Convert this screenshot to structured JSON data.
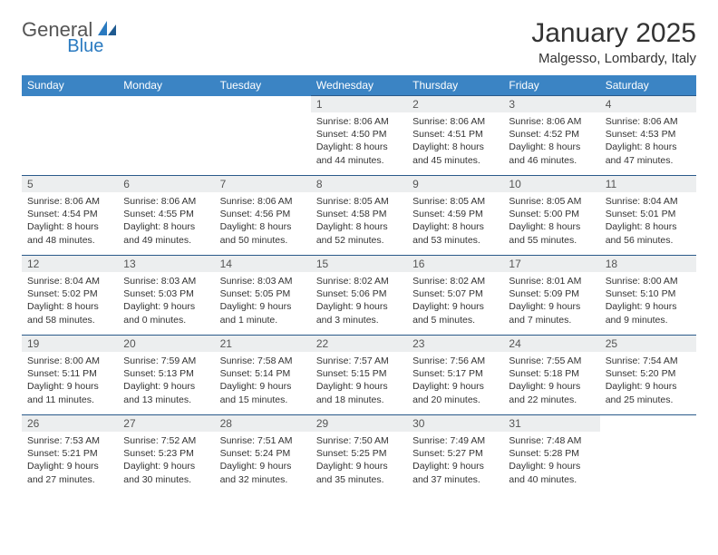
{
  "logo": {
    "part1": "General",
    "part2": "Blue"
  },
  "title": "January 2025",
  "location": "Malgesso, Lombardy, Italy",
  "colors": {
    "header_bg": "#3b84c4",
    "border": "#2a5a8a",
    "daynum_bg": "#eceeef",
    "logo_blue": "#2a7ac0"
  },
  "weekdays": [
    "Sunday",
    "Monday",
    "Tuesday",
    "Wednesday",
    "Thursday",
    "Friday",
    "Saturday"
  ],
  "weeks": [
    [
      null,
      null,
      null,
      {
        "n": "1",
        "sr": "8:06 AM",
        "ss": "4:50 PM",
        "dl": "8 hours and 44 minutes."
      },
      {
        "n": "2",
        "sr": "8:06 AM",
        "ss": "4:51 PM",
        "dl": "8 hours and 45 minutes."
      },
      {
        "n": "3",
        "sr": "8:06 AM",
        "ss": "4:52 PM",
        "dl": "8 hours and 46 minutes."
      },
      {
        "n": "4",
        "sr": "8:06 AM",
        "ss": "4:53 PM",
        "dl": "8 hours and 47 minutes."
      }
    ],
    [
      {
        "n": "5",
        "sr": "8:06 AM",
        "ss": "4:54 PM",
        "dl": "8 hours and 48 minutes."
      },
      {
        "n": "6",
        "sr": "8:06 AM",
        "ss": "4:55 PM",
        "dl": "8 hours and 49 minutes."
      },
      {
        "n": "7",
        "sr": "8:06 AM",
        "ss": "4:56 PM",
        "dl": "8 hours and 50 minutes."
      },
      {
        "n": "8",
        "sr": "8:05 AM",
        "ss": "4:58 PM",
        "dl": "8 hours and 52 minutes."
      },
      {
        "n": "9",
        "sr": "8:05 AM",
        "ss": "4:59 PM",
        "dl": "8 hours and 53 minutes."
      },
      {
        "n": "10",
        "sr": "8:05 AM",
        "ss": "5:00 PM",
        "dl": "8 hours and 55 minutes."
      },
      {
        "n": "11",
        "sr": "8:04 AM",
        "ss": "5:01 PM",
        "dl": "8 hours and 56 minutes."
      }
    ],
    [
      {
        "n": "12",
        "sr": "8:04 AM",
        "ss": "5:02 PM",
        "dl": "8 hours and 58 minutes."
      },
      {
        "n": "13",
        "sr": "8:03 AM",
        "ss": "5:03 PM",
        "dl": "9 hours and 0 minutes."
      },
      {
        "n": "14",
        "sr": "8:03 AM",
        "ss": "5:05 PM",
        "dl": "9 hours and 1 minute."
      },
      {
        "n": "15",
        "sr": "8:02 AM",
        "ss": "5:06 PM",
        "dl": "9 hours and 3 minutes."
      },
      {
        "n": "16",
        "sr": "8:02 AM",
        "ss": "5:07 PM",
        "dl": "9 hours and 5 minutes."
      },
      {
        "n": "17",
        "sr": "8:01 AM",
        "ss": "5:09 PM",
        "dl": "9 hours and 7 minutes."
      },
      {
        "n": "18",
        "sr": "8:00 AM",
        "ss": "5:10 PM",
        "dl": "9 hours and 9 minutes."
      }
    ],
    [
      {
        "n": "19",
        "sr": "8:00 AM",
        "ss": "5:11 PM",
        "dl": "9 hours and 11 minutes."
      },
      {
        "n": "20",
        "sr": "7:59 AM",
        "ss": "5:13 PM",
        "dl": "9 hours and 13 minutes."
      },
      {
        "n": "21",
        "sr": "7:58 AM",
        "ss": "5:14 PM",
        "dl": "9 hours and 15 minutes."
      },
      {
        "n": "22",
        "sr": "7:57 AM",
        "ss": "5:15 PM",
        "dl": "9 hours and 18 minutes."
      },
      {
        "n": "23",
        "sr": "7:56 AM",
        "ss": "5:17 PM",
        "dl": "9 hours and 20 minutes."
      },
      {
        "n": "24",
        "sr": "7:55 AM",
        "ss": "5:18 PM",
        "dl": "9 hours and 22 minutes."
      },
      {
        "n": "25",
        "sr": "7:54 AM",
        "ss": "5:20 PM",
        "dl": "9 hours and 25 minutes."
      }
    ],
    [
      {
        "n": "26",
        "sr": "7:53 AM",
        "ss": "5:21 PM",
        "dl": "9 hours and 27 minutes."
      },
      {
        "n": "27",
        "sr": "7:52 AM",
        "ss": "5:23 PM",
        "dl": "9 hours and 30 minutes."
      },
      {
        "n": "28",
        "sr": "7:51 AM",
        "ss": "5:24 PM",
        "dl": "9 hours and 32 minutes."
      },
      {
        "n": "29",
        "sr": "7:50 AM",
        "ss": "5:25 PM",
        "dl": "9 hours and 35 minutes."
      },
      {
        "n": "30",
        "sr": "7:49 AM",
        "ss": "5:27 PM",
        "dl": "9 hours and 37 minutes."
      },
      {
        "n": "31",
        "sr": "7:48 AM",
        "ss": "5:28 PM",
        "dl": "9 hours and 40 minutes."
      },
      null
    ]
  ],
  "labels": {
    "sunrise": "Sunrise:",
    "sunset": "Sunset:",
    "daylight": "Daylight:"
  }
}
